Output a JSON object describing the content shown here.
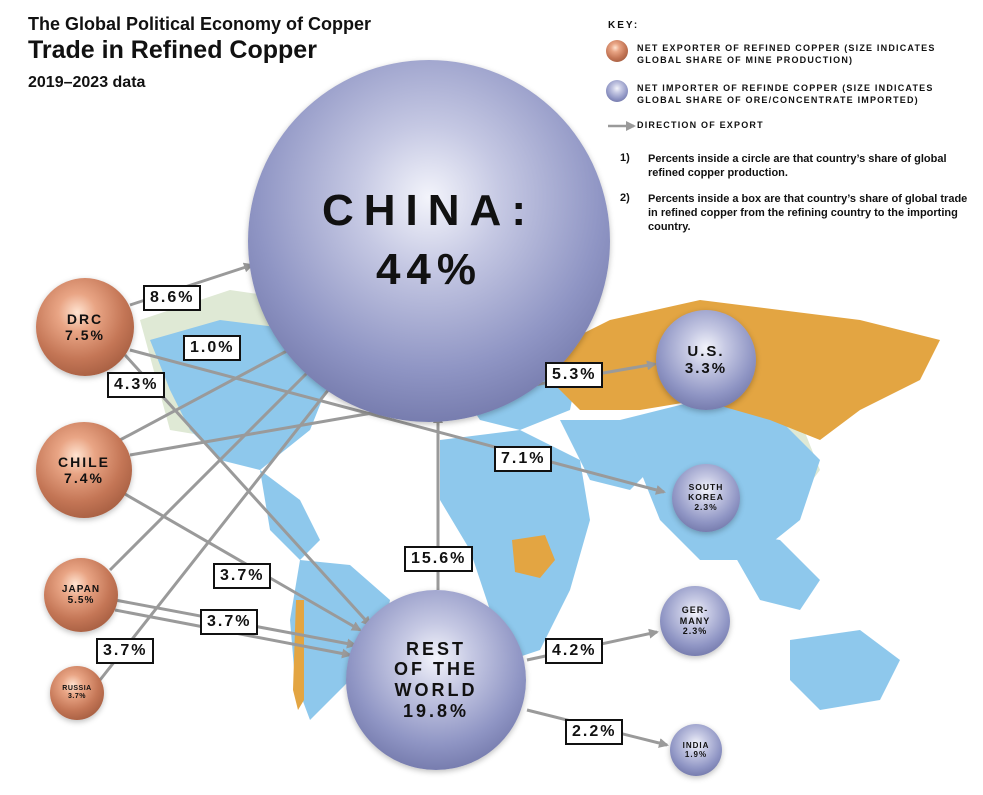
{
  "header": {
    "line1": "The Global Political Economy of Copper",
    "line2": "Trade in Refined Copper",
    "line3": "2019–2023 data"
  },
  "key": {
    "title": "KEY:",
    "exporter": "NET EXPORTER OF REFINED COPPER (SIZE INDICATES GLOBAL SHARE OF MINE PRODUCTION)",
    "importer": "NET IMPORTER OF REFINDE COPPER (SIZE INDICATES GLOBAL SHARE OF ORE/CONCENTRATE IMPORTED)",
    "arrow": "DIRECTION OF EXPORT",
    "note1_num": "1)",
    "note1": "Percents inside a circle are that country’s share of global refined copper production.",
    "note2_num": "2)",
    "note2": "Percents inside a box are that country’s share of global trade in refined copper from the refining country to the importing country."
  },
  "colors": {
    "copper": "#c47656",
    "steel": "#8f95c4",
    "arrow": "#9a9a9a",
    "ocean_land_blue": "#8ec8ec",
    "russia_orange": "#e3a542",
    "pale_green": "#dfe9d5"
  },
  "nodes": {
    "china": {
      "name": "CHINA:",
      "pct": "44%"
    },
    "drc": {
      "name": "DRC",
      "pct": "7.5%"
    },
    "chile": {
      "name": "CHILE",
      "pct": "7.4%"
    },
    "japan": {
      "name": "JAPAN",
      "pct": "5.5%"
    },
    "russia": {
      "name": "RUSSIA",
      "pct": "3.7%"
    },
    "us": {
      "name": "U.S.",
      "pct": "3.3%"
    },
    "south_korea": {
      "name1": "SOUTH",
      "name2": "KOREA",
      "pct": "2.3%"
    },
    "germany": {
      "name1": "GER-",
      "name2": "MANY",
      "pct": "2.3%"
    },
    "india": {
      "name": "INDIA",
      "pct": "1.9%"
    },
    "rest_of_world": {
      "name1": "REST",
      "name2": "OF THE",
      "name3": "WORLD",
      "pct": "19.8%"
    }
  },
  "flows": [
    {
      "from": "DRC",
      "to": "CHINA",
      "label": "8.6%"
    },
    {
      "from": "CHILE",
      "to": "CHINA",
      "label": "1.0%"
    },
    {
      "from": "DRC",
      "to": "SOUTH KOREA",
      "label": "4.3%"
    },
    {
      "from": "CHILE",
      "to": "U.S.",
      "label": "5.3%"
    },
    {
      "from": "DRC",
      "to": "SOUTH KOREA",
      "label": "7.1%"
    },
    {
      "from": "REST OF THE WORLD",
      "to": "CHINA",
      "label": "15.6%"
    },
    {
      "from": "CHILE",
      "to": "REST OF THE WORLD",
      "label": "3.7%"
    },
    {
      "from": "JAPAN",
      "to": "REST OF THE WORLD",
      "label": "3.7%"
    },
    {
      "from": "RUSSIA",
      "to": "CHINA",
      "label": "3.7%"
    },
    {
      "from": "REST OF THE WORLD",
      "to": "GERMANY",
      "label": "4.2%"
    },
    {
      "from": "REST OF THE WORLD",
      "to": "INDIA",
      "label": "2.2%"
    }
  ]
}
